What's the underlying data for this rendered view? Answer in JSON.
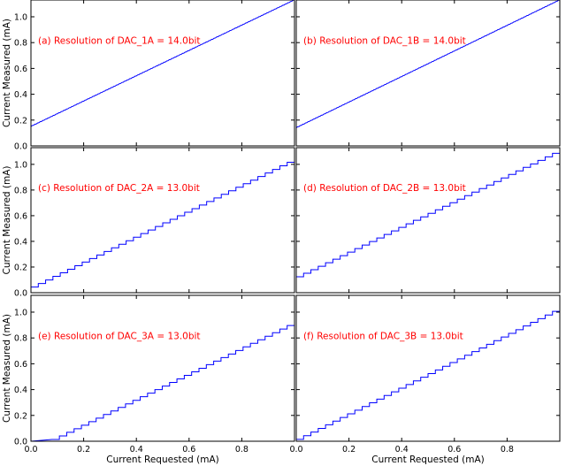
{
  "figure": {
    "series_color": "#0000ff",
    "annotation_color": "#ff0000",
    "x_axis_label": "Current Requested (mA)",
    "y_axis_label": "Current Measured (mA)"
  },
  "chart_data": [
    {
      "type": "line",
      "annotation": "(a) Resolution of DAC_1A = 14.0bit",
      "x": [
        0.0,
        1.0
      ],
      "y": [
        0.15,
        1.13
      ],
      "steps": 0,
      "xlim": [
        0,
        1.0
      ],
      "ylim": [
        0,
        1.13
      ],
      "xticks": [
        0.0,
        0.2,
        0.4,
        0.6,
        0.8
      ],
      "yticks": [
        0.0,
        0.2,
        0.4,
        0.6,
        0.8,
        1.0
      ],
      "xlabel": "",
      "ylabel": "Current Measured (mA)"
    },
    {
      "type": "line",
      "annotation": "(b) Resolution of DAC_1B = 14.0bit",
      "x": [
        0.0,
        1.0
      ],
      "y": [
        0.14,
        1.13
      ],
      "steps": 0,
      "xlim": [
        0,
        1.0
      ],
      "ylim": [
        0,
        1.13
      ],
      "xticks": [
        0.0,
        0.2,
        0.4,
        0.6,
        0.8
      ],
      "yticks": [
        0.0,
        0.2,
        0.4,
        0.6,
        0.8,
        1.0
      ],
      "xlabel": "",
      "ylabel": ""
    },
    {
      "type": "line",
      "annotation": "(c) Resolution of DAC_2A = 13.0bit",
      "x": [
        0.0,
        1.0
      ],
      "y": [
        0.03,
        1.03
      ],
      "steps": 36,
      "xlim": [
        0,
        1.0
      ],
      "ylim": [
        0,
        1.13
      ],
      "xticks": [
        0.0,
        0.2,
        0.4,
        0.6,
        0.8
      ],
      "yticks": [
        0.0,
        0.2,
        0.4,
        0.6,
        0.8,
        1.0
      ],
      "xlabel": "",
      "ylabel": "Current Measured (mA)"
    },
    {
      "type": "line",
      "annotation": "(d) Resolution of DAC_2B = 13.0bit",
      "x": [
        0.0,
        1.0
      ],
      "y": [
        0.11,
        1.1
      ],
      "steps": 36,
      "xlim": [
        0,
        1.0
      ],
      "ylim": [
        0,
        1.13
      ],
      "xticks": [
        0.0,
        0.2,
        0.4,
        0.6,
        0.8
      ],
      "yticks": [
        0.0,
        0.2,
        0.4,
        0.6,
        0.8,
        1.0
      ],
      "xlabel": "",
      "ylabel": ""
    },
    {
      "type": "line",
      "annotation": "(e) Resolution of DAC_3A = 13.0bit",
      "x": [
        0.0,
        0.08,
        1.0
      ],
      "y": [
        0.0,
        0.0,
        0.91
      ],
      "steps": 33,
      "xlim": [
        0,
        1.0
      ],
      "ylim": [
        0,
        1.13
      ],
      "xticks": [
        0.0,
        0.2,
        0.4,
        0.6,
        0.8
      ],
      "yticks": [
        0.0,
        0.2,
        0.4,
        0.6,
        0.8,
        1.0
      ],
      "xlabel": "Current Requested (mA)",
      "ylabel": "Current Measured (mA)"
    },
    {
      "type": "line",
      "annotation": "(f) Resolution of DAC_3B = 13.0bit",
      "x": [
        0.0,
        1.0
      ],
      "y": [
        0.0,
        1.02
      ],
      "steps": 36,
      "xlim": [
        0,
        1.0
      ],
      "ylim": [
        0,
        1.13
      ],
      "xticks": [
        0.0,
        0.2,
        0.4,
        0.6,
        0.8
      ],
      "yticks": [
        0.0,
        0.2,
        0.4,
        0.6,
        0.8,
        1.0
      ],
      "xlabel": "Current Requested (mA)",
      "ylabel": ""
    }
  ]
}
